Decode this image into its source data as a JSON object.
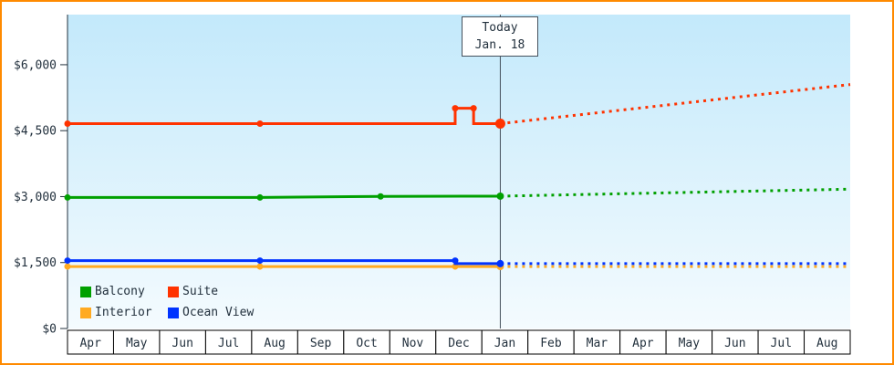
{
  "frame": {
    "border_color": "#ff8a00",
    "background": "#ffffff"
  },
  "chart_data": {
    "type": "line",
    "grid": false,
    "legend_position": "bottom-left-inside",
    "months": [
      "Apr",
      "May",
      "Jun",
      "Jul",
      "Aug",
      "Sep",
      "Oct",
      "Nov",
      "Dec",
      "Jan",
      "Feb",
      "Mar",
      "Apr",
      "May",
      "Jun",
      "Jul",
      "Aug"
    ],
    "y_ticks": [
      {
        "value": 0,
        "label": "$0"
      },
      {
        "value": 1500,
        "label": "$1,500"
      },
      {
        "value": 3000,
        "label": "$3,000"
      },
      {
        "value": 4500,
        "label": "$4,500"
      },
      {
        "value": 6000,
        "label": "$6,000"
      }
    ],
    "ylim": [
      0,
      7140
    ],
    "plot": {
      "bg_top": "#c3e9fb",
      "bg_bottom": "#f4fbfe"
    },
    "today": {
      "month_pos": 9.4,
      "label": "Today",
      "date_label": "Jan. 18"
    },
    "series": [
      {
        "name": "Balcony",
        "color": "#00a000",
        "history": [
          [
            0,
            2980
          ],
          [
            4.18,
            2980
          ],
          [
            6.8,
            3005
          ],
          [
            9.4,
            3010
          ]
        ],
        "points": [
          [
            0,
            2980
          ],
          [
            4.18,
            2980
          ],
          [
            6.8,
            3005
          ]
        ],
        "today_value": 3010,
        "forecast_end_value": 3170
      },
      {
        "name": "Suite",
        "color": "#ff3300",
        "history": [
          [
            0,
            4660
          ],
          [
            8.42,
            4660
          ],
          [
            8.42,
            5010
          ],
          [
            8.82,
            5010
          ],
          [
            8.82,
            4660
          ],
          [
            9.4,
            4660
          ]
        ],
        "points": [
          [
            0,
            4660
          ],
          [
            4.18,
            4660
          ],
          [
            8.42,
            5010
          ],
          [
            8.82,
            5010
          ]
        ],
        "today_value": 4660,
        "forecast_end_value": 5550
      },
      {
        "name": "Interior",
        "color": "#ffaa22",
        "history": [
          [
            0,
            1410
          ],
          [
            9.4,
            1410
          ]
        ],
        "points": [
          [
            0,
            1410
          ],
          [
            4.18,
            1410
          ],
          [
            8.42,
            1410
          ]
        ],
        "today_value": 1410,
        "forecast_end_value": 1410
      },
      {
        "name": "Ocean View",
        "color": "#0033ff",
        "history": [
          [
            0,
            1545
          ],
          [
            8.42,
            1545
          ],
          [
            8.42,
            1475
          ],
          [
            9.4,
            1475
          ]
        ],
        "points": [
          [
            0,
            1545
          ],
          [
            4.18,
            1545
          ],
          [
            8.42,
            1545
          ]
        ],
        "today_value": 1475,
        "forecast_end_value": 1475
      }
    ]
  }
}
